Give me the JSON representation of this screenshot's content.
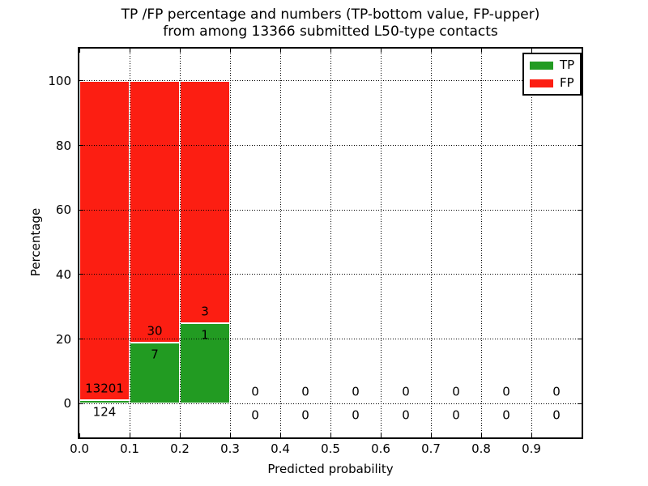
{
  "chart_data": {
    "type": "bar",
    "stacked": true,
    "title": "TP /FP percentage and numbers (TP-bottom value, FP-upper)\nfrom among 13366 submitted L50-type contacts",
    "title_lines": [
      "TP /FP percentage and numbers (TP-bottom value, FP-upper)",
      "from among 13366 submitted L50-type contacts"
    ],
    "xlabel": "Predicted probability",
    "ylabel": "Percentage",
    "xlim": [
      0.0,
      1.0
    ],
    "ylim": [
      -10.5,
      110
    ],
    "grid": true,
    "grid_style": "dotted",
    "x_tick_values": [
      0.0,
      0.1,
      0.2,
      0.3,
      0.4,
      0.5,
      0.6,
      0.7,
      0.8,
      0.9
    ],
    "x_tick_labels": [
      "0.0",
      "0.1",
      "0.2",
      "0.3",
      "0.4",
      "0.5",
      "0.6",
      "0.7",
      "0.8",
      "0.9"
    ],
    "y_tick_values": [
      0,
      20,
      40,
      60,
      80,
      100
    ],
    "y_tick_labels": [
      "0",
      "20",
      "40",
      "60",
      "80",
      "100"
    ],
    "legend": {
      "position": "upper right",
      "entries": [
        {
          "name": "TP",
          "color": "#229b22"
        },
        {
          "name": "FP",
          "color": "#fc1e12"
        }
      ]
    },
    "colors": {
      "tp": "#229b22",
      "fp": "#fc1e12",
      "bar_edge": "#ffffff",
      "grid": "#000000"
    },
    "bins": [
      {
        "x0": 0.0,
        "x1": 0.1,
        "tp": 124,
        "fp": 13201,
        "tp_pct": 0.9306,
        "fp_pct": 99.0694
      },
      {
        "x0": 0.1,
        "x1": 0.2,
        "tp": 7,
        "fp": 30,
        "tp_pct": 18.9189,
        "fp_pct": 81.0811
      },
      {
        "x0": 0.2,
        "x1": 0.3,
        "tp": 1,
        "fp": 3,
        "tp_pct": 25.0,
        "fp_pct": 75.0
      },
      {
        "x0": 0.3,
        "x1": 0.4,
        "tp": 0,
        "fp": 0,
        "tp_pct": 0,
        "fp_pct": 0
      },
      {
        "x0": 0.4,
        "x1": 0.5,
        "tp": 0,
        "fp": 0,
        "tp_pct": 0,
        "fp_pct": 0
      },
      {
        "x0": 0.5,
        "x1": 0.6,
        "tp": 0,
        "fp": 0,
        "tp_pct": 0,
        "fp_pct": 0
      },
      {
        "x0": 0.6,
        "x1": 0.7,
        "tp": 0,
        "fp": 0,
        "tp_pct": 0,
        "fp_pct": 0
      },
      {
        "x0": 0.7,
        "x1": 0.8,
        "tp": 0,
        "fp": 0,
        "tp_pct": 0,
        "fp_pct": 0
      },
      {
        "x0": 0.8,
        "x1": 0.9,
        "tp": 0,
        "fp": 0,
        "tp_pct": 0,
        "fp_pct": 0
      },
      {
        "x0": 0.9,
        "x1": 1.0,
        "tp": 0,
        "fp": 0,
        "tp_pct": 0,
        "fp_pct": 0
      }
    ]
  }
}
